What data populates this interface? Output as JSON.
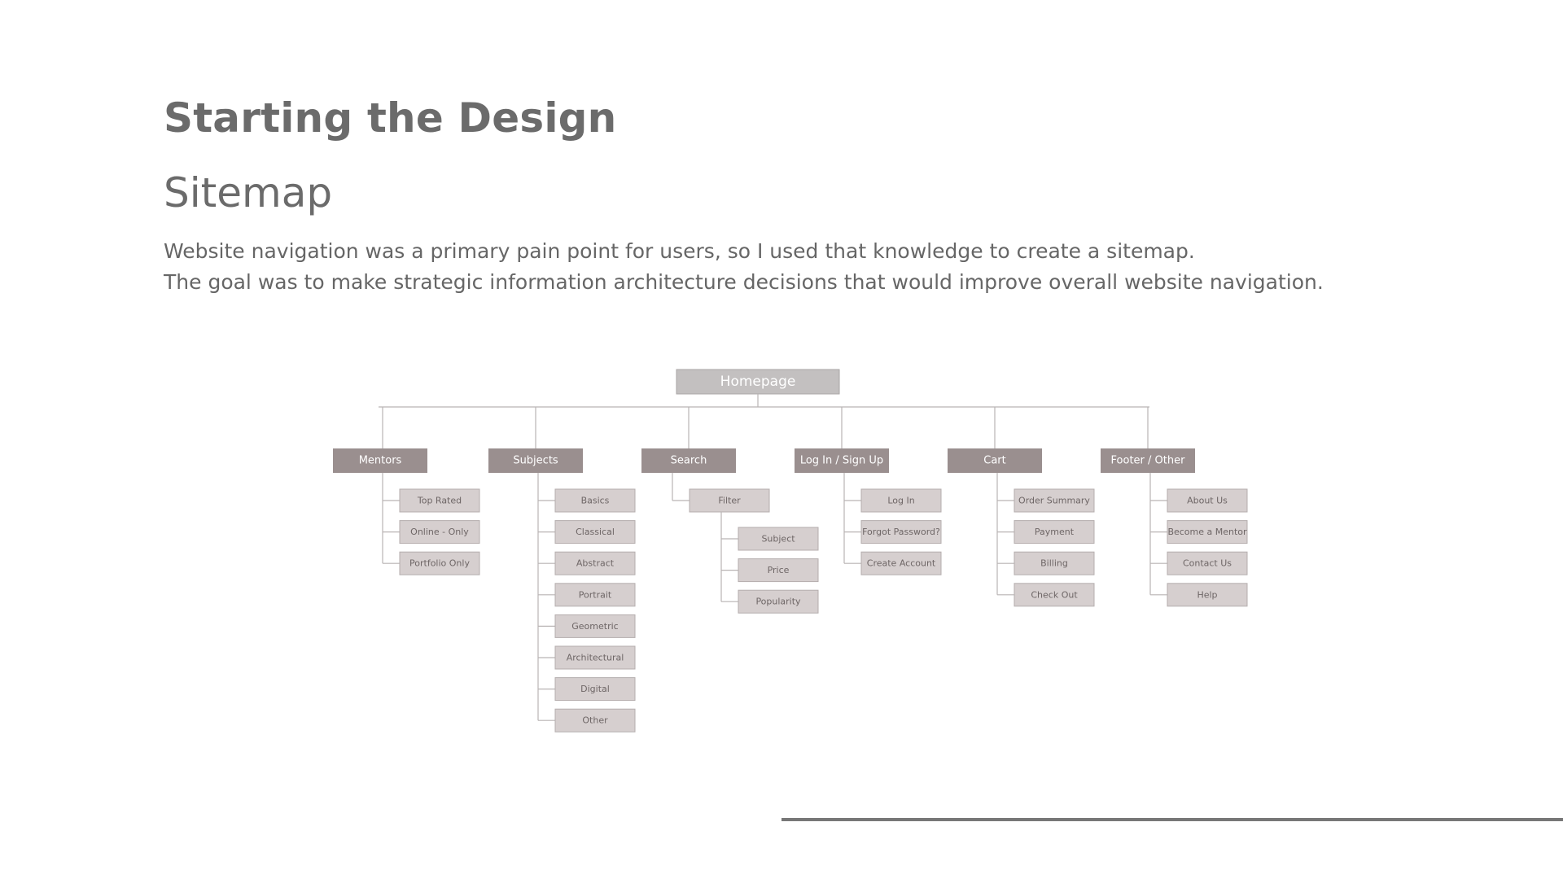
{
  "slide": {
    "title": "Starting the Design",
    "subtitle": "Sitemap",
    "description": [
      "Website navigation was a primary pain point for users, so I used that knowledge to create a sitemap.",
      "The goal was to make strategic information architecture decisions that would improve overall website navigation."
    ]
  },
  "colors": {
    "root_fill": "#c3c0c0",
    "category_fill": "#9a8f8f",
    "leaf_fill": "#d6cfcf",
    "text": "#666666"
  },
  "sitemap": {
    "root": "Homepage",
    "categories": [
      {
        "label": "Mentors",
        "children": [
          {
            "label": "Top Rated"
          },
          {
            "label": "Online - Only"
          },
          {
            "label": "Portfolio Only"
          }
        ]
      },
      {
        "label": "Subjects",
        "children": [
          {
            "label": "Basics"
          },
          {
            "label": "Classical"
          },
          {
            "label": "Abstract"
          },
          {
            "label": "Portrait"
          },
          {
            "label": "Geometric"
          },
          {
            "label": "Architectural"
          },
          {
            "label": "Digital"
          },
          {
            "label": "Other"
          }
        ]
      },
      {
        "label": "Search",
        "children": [
          {
            "label": "Filter",
            "children": [
              {
                "label": "Subject"
              },
              {
                "label": "Price"
              },
              {
                "label": "Popularity"
              }
            ]
          }
        ]
      },
      {
        "label": "Log In / Sign Up",
        "children": [
          {
            "label": "Log In"
          },
          {
            "label": "Forgot Password?"
          },
          {
            "label": "Create Account"
          }
        ]
      },
      {
        "label": "Cart",
        "children": [
          {
            "label": "Order Summary"
          },
          {
            "label": "Payment"
          },
          {
            "label": "Billing"
          },
          {
            "label": "Check Out"
          }
        ]
      },
      {
        "label": "Footer / Other",
        "children": [
          {
            "label": "About Us"
          },
          {
            "label": "Become a Mentor"
          },
          {
            "label": "Contact Us"
          },
          {
            "label": "Help"
          }
        ]
      }
    ]
  }
}
